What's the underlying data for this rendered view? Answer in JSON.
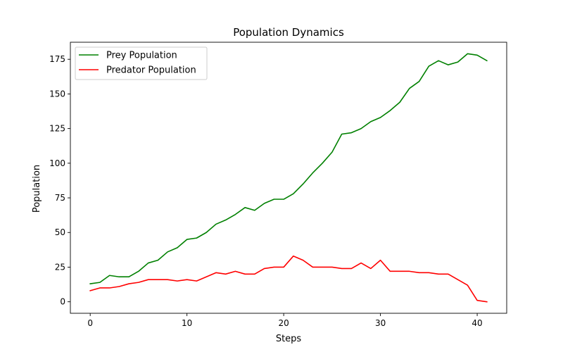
{
  "chart_data": {
    "type": "line",
    "title": "Population Dynamics",
    "xlabel": "Steps",
    "ylabel": "Population",
    "xlim": [
      -2.05,
      43.05
    ],
    "ylim": [
      -8.3,
      187.3
    ],
    "xticks": [
      0,
      10,
      20,
      30,
      40
    ],
    "yticks": [
      0,
      25,
      50,
      75,
      100,
      125,
      150,
      175
    ],
    "grid": false,
    "legend_position": "top-left",
    "x": [
      0,
      1,
      2,
      3,
      4,
      5,
      6,
      7,
      8,
      9,
      10,
      11,
      12,
      13,
      14,
      15,
      16,
      17,
      18,
      19,
      20,
      21,
      22,
      23,
      24,
      25,
      26,
      27,
      28,
      29,
      30,
      31,
      32,
      33,
      34,
      35,
      36,
      37,
      38,
      39,
      40,
      41
    ],
    "series": [
      {
        "name": "Prey Population",
        "color": "#008000",
        "values": [
          13,
          14,
          19,
          18,
          18,
          22,
          28,
          30,
          36,
          39,
          45,
          46,
          50,
          56,
          59,
          63,
          68,
          66,
          71,
          74,
          74,
          78,
          85,
          93,
          100,
          108,
          121,
          122,
          125,
          130,
          133,
          138,
          144,
          154,
          159,
          170,
          174,
          171,
          173,
          179,
          178,
          174
        ]
      },
      {
        "name": "Predator Population",
        "color": "#ff0000",
        "values": [
          8,
          10,
          10,
          11,
          13,
          14,
          16,
          16,
          16,
          15,
          16,
          15,
          18,
          21,
          20,
          22,
          20,
          20,
          24,
          25,
          25,
          33,
          30,
          25,
          25,
          25,
          24,
          24,
          28,
          24,
          30,
          22,
          22,
          22,
          21,
          21,
          20,
          20,
          16,
          12,
          1,
          0
        ]
      }
    ]
  }
}
